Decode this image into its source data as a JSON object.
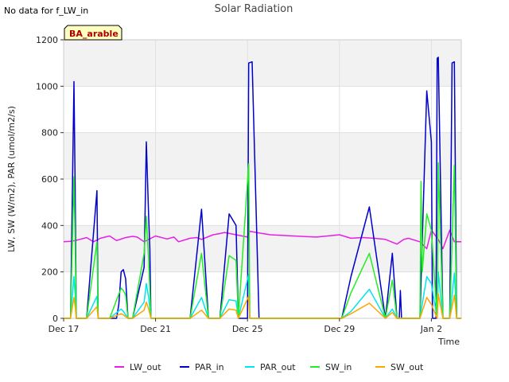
{
  "notice": "No data for f_LW_in",
  "chart_data": {
    "type": "line",
    "title": "Solar Radiation",
    "xlabel": "Time",
    "ylabel": "LW, SW (W/m2), PAR (umol/m2/s)",
    "badge": "BA_arable",
    "xlim": [
      0,
      17.3
    ],
    "ylim": [
      0,
      1200
    ],
    "x_unit": "days since Dec 17",
    "x_ticks": [
      {
        "value": 0,
        "label": "Dec 17"
      },
      {
        "value": 4,
        "label": "Dec 21"
      },
      {
        "value": 8,
        "label": "Dec 25"
      },
      {
        "value": 12,
        "label": "Dec 29"
      },
      {
        "value": 16,
        "label": "Jan 2"
      }
    ],
    "y_ticks": [
      0,
      200,
      400,
      600,
      800,
      1000,
      1200
    ],
    "bands": "alternating light-gray horizontal bands every 200 units",
    "legend_position": "bottom",
    "series": [
      {
        "name": "LW_out",
        "color": "#e81ee8",
        "x": [
          0,
          0.3,
          0.5,
          0.7,
          1.0,
          1.3,
          1.6,
          2.0,
          2.3,
          2.7,
          3.0,
          3.2,
          3.5,
          4.0,
          4.5,
          4.8,
          5.0,
          5.5,
          5.8,
          6.0,
          6.5,
          6.8,
          7.0,
          7.5,
          8.0,
          8.1,
          8.5,
          9.0,
          10.0,
          11.0,
          12.0,
          12.5,
          13.0,
          13.5,
          14.0,
          14.5,
          14.8,
          15.0,
          15.5,
          15.8,
          16.0,
          16.3,
          16.5,
          16.8,
          17.0,
          17.3
        ],
        "y": [
          330,
          332,
          335,
          340,
          348,
          330,
          345,
          355,
          335,
          348,
          353,
          350,
          330,
          355,
          342,
          350,
          330,
          345,
          348,
          340,
          360,
          365,
          370,
          360,
          350,
          375,
          368,
          360,
          355,
          350,
          360,
          345,
          348,
          345,
          340,
          320,
          340,
          345,
          330,
          300,
          380,
          340,
          300,
          380,
          330,
          330
        ]
      },
      {
        "name": "PAR_in",
        "color": "#0000cc",
        "x": [
          0,
          0.3,
          0.45,
          0.5,
          0.55,
          0.7,
          1.0,
          1.45,
          1.5,
          1.7,
          2.0,
          2.3,
          2.4,
          2.5,
          2.6,
          2.7,
          2.8,
          2.9,
          3.0,
          3.5,
          3.6,
          3.7,
          3.75,
          3.8,
          3.9,
          4.0,
          4.3,
          4.5,
          5.3,
          5.5,
          6.0,
          6.3,
          6.8,
          7.2,
          7.5,
          7.6,
          7.65,
          8.0,
          8.05,
          8.2,
          8.5,
          9.0,
          10.0,
          11.0,
          11.3,
          12.0,
          12.1,
          12.5,
          13.3,
          14.0,
          14.3,
          14.5,
          14.55,
          14.6,
          14.65,
          14.7,
          14.75,
          14.8,
          15.3,
          15.5,
          15.8,
          16.0,
          16.05,
          16.1,
          16.2,
          16.25,
          16.3,
          16.5,
          16.7,
          16.8,
          16.9,
          17.0,
          17.1,
          17.3
        ],
        "y": [
          0,
          0,
          1020,
          560,
          0,
          0,
          0,
          550,
          0,
          0,
          0,
          0,
          60,
          200,
          210,
          170,
          0,
          0,
          0,
          220,
          760,
          440,
          300,
          0,
          0,
          0,
          0,
          0,
          0,
          0,
          470,
          0,
          0,
          450,
          400,
          0,
          0,
          0,
          1100,
          1105,
          0,
          0,
          0,
          0,
          0,
          0,
          0,
          180,
          480,
          0,
          280,
          0,
          0,
          0,
          120,
          0,
          0,
          0,
          0,
          0,
          980,
          760,
          0,
          0,
          0,
          1120,
          1125,
          0,
          0,
          0,
          1100,
          1105,
          0,
          0
        ]
      },
      {
        "name": "PAR_out",
        "color": "#00e5ee",
        "x": [
          0,
          0.3,
          0.45,
          0.5,
          0.55,
          0.7,
          1.0,
          1.45,
          1.5,
          1.7,
          2.0,
          2.5,
          2.6,
          2.8,
          3.0,
          3.5,
          3.6,
          3.7,
          3.8,
          4.0,
          4.3,
          4.5,
          5.3,
          5.5,
          6.0,
          6.3,
          6.8,
          7.2,
          7.5,
          7.6,
          8.05,
          8.1,
          8.5,
          9.0,
          10.0,
          11.0,
          11.3,
          12.0,
          12.1,
          12.5,
          13.3,
          14.0,
          14.3,
          14.5,
          14.7,
          15.3,
          15.5,
          15.8,
          16.0,
          16.25,
          16.3,
          16.5,
          16.8,
          17.0,
          17.1,
          17.3
        ],
        "y": [
          0,
          0,
          180,
          100,
          0,
          0,
          0,
          95,
          0,
          0,
          0,
          40,
          30,
          0,
          0,
          70,
          150,
          90,
          0,
          0,
          0,
          0,
          0,
          0,
          90,
          0,
          0,
          80,
          75,
          0,
          190,
          0,
          0,
          0,
          0,
          0,
          0,
          0,
          0,
          30,
          125,
          0,
          40,
          0,
          0,
          0,
          0,
          180,
          150,
          0,
          200,
          0,
          0,
          195,
          0,
          0
        ]
      },
      {
        "name": "SW_in",
        "color": "#22ee22",
        "x": [
          0,
          0.3,
          0.45,
          0.5,
          0.55,
          0.7,
          1.0,
          1.45,
          1.5,
          1.7,
          2.0,
          2.5,
          2.6,
          2.7,
          2.8,
          3.0,
          3.5,
          3.6,
          3.7,
          3.8,
          4.0,
          4.3,
          4.5,
          5.3,
          5.5,
          6.0,
          6.3,
          6.8,
          7.2,
          7.5,
          7.6,
          8.05,
          8.1,
          8.5,
          9.0,
          10.0,
          11.0,
          11.3,
          12.0,
          12.1,
          12.5,
          13.3,
          14.0,
          14.3,
          14.5,
          14.7,
          15.3,
          15.5,
          15.55,
          15.6,
          15.8,
          16.0,
          16.25,
          16.3,
          16.5,
          16.8,
          17.0,
          17.1,
          17.3
        ],
        "y": [
          0,
          0,
          610,
          330,
          0,
          0,
          0,
          330,
          0,
          0,
          0,
          130,
          120,
          100,
          0,
          0,
          280,
          440,
          250,
          0,
          0,
          0,
          0,
          0,
          0,
          280,
          0,
          0,
          270,
          250,
          0,
          665,
          0,
          0,
          0,
          0,
          0,
          0,
          0,
          0,
          110,
          280,
          0,
          165,
          0,
          0,
          0,
          0,
          590,
          200,
          450,
          380,
          0,
          670,
          0,
          0,
          660,
          0,
          0
        ]
      },
      {
        "name": "SW_out",
        "color": "#ffa500",
        "x": [
          0,
          0.3,
          0.45,
          0.5,
          0.55,
          0.7,
          1.0,
          1.45,
          1.5,
          1.7,
          2.0,
          2.5,
          2.6,
          2.8,
          3.0,
          3.5,
          3.6,
          3.7,
          3.8,
          4.0,
          4.3,
          4.5,
          5.3,
          5.5,
          6.0,
          6.3,
          6.8,
          7.2,
          7.5,
          7.6,
          8.05,
          8.1,
          8.5,
          9.0,
          10.0,
          11.0,
          11.3,
          12.0,
          12.1,
          12.5,
          13.3,
          14.0,
          14.3,
          14.5,
          14.7,
          15.3,
          15.5,
          15.8,
          16.0,
          16.25,
          16.3,
          16.5,
          16.8,
          17.0,
          17.1,
          17.3
        ],
        "y": [
          0,
          0,
          90,
          50,
          0,
          0,
          0,
          50,
          0,
          0,
          0,
          20,
          15,
          0,
          0,
          35,
          70,
          40,
          0,
          0,
          0,
          0,
          0,
          0,
          35,
          0,
          0,
          40,
          35,
          0,
          95,
          0,
          0,
          0,
          0,
          0,
          0,
          0,
          0,
          20,
          65,
          0,
          25,
          0,
          0,
          0,
          0,
          90,
          60,
          0,
          105,
          0,
          0,
          100,
          0,
          0
        ]
      }
    ]
  }
}
